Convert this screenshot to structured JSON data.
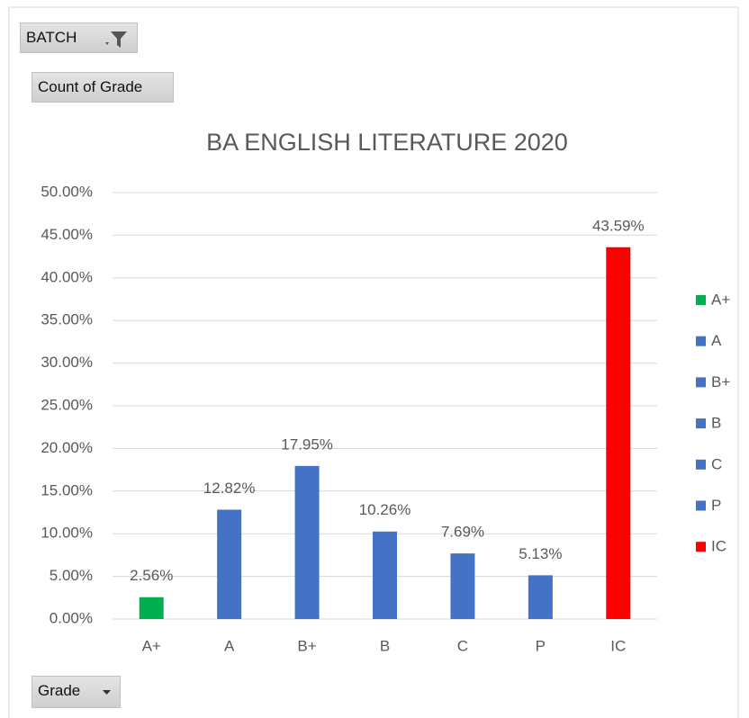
{
  "pivot_buttons": {
    "filter": "BATCH",
    "values": "Count of Grade",
    "axis": "Grade"
  },
  "chart_data": {
    "type": "bar",
    "title": "BA ENGLISH LITERATURE 2020",
    "categories": [
      "A+",
      "A",
      "B+",
      "B",
      "C",
      "P",
      "IC"
    ],
    "values": [
      2.56,
      12.82,
      17.95,
      10.26,
      7.69,
      5.13,
      43.59
    ],
    "value_labels": [
      "2.56%",
      "12.82%",
      "17.95%",
      "10.26%",
      "7.69%",
      "5.13%",
      "43.59%"
    ],
    "colors": [
      "#00b050",
      "#4472c4",
      "#4472c4",
      "#4472c4",
      "#4472c4",
      "#4472c4",
      "#ff0000"
    ],
    "ylim": [
      0,
      50
    ],
    "yticks": [
      {
        "value": 0,
        "label": "0.00%"
      },
      {
        "value": 5,
        "label": "5.00%"
      },
      {
        "value": 10,
        "label": "10.00%"
      },
      {
        "value": 15,
        "label": "15.00%"
      },
      {
        "value": 20,
        "label": "20.00%"
      },
      {
        "value": 25,
        "label": "25.00%"
      },
      {
        "value": 30,
        "label": "30.00%"
      },
      {
        "value": 35,
        "label": "35.00%"
      },
      {
        "value": 40,
        "label": "40.00%"
      },
      {
        "value": 45,
        "label": "45.00%"
      },
      {
        "value": 50,
        "label": "50.00%"
      }
    ],
    "grid": true,
    "legend": "right"
  }
}
